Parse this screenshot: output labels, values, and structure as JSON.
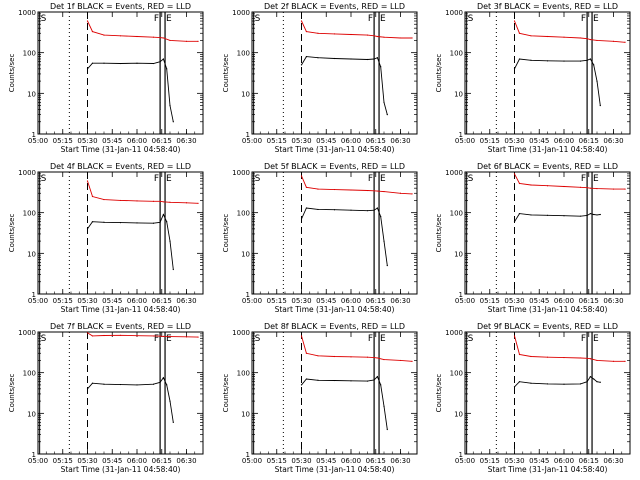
{
  "colors": {
    "events": "#000000",
    "lld": "#dd0000",
    "axis": "#000000",
    "background": "#ffffff"
  },
  "chart_data": [
    {
      "type": "line",
      "title": "Det 1f BLACK = Events, RED = LLD",
      "xlabel": "Start Time (31-Jan-11 04:58:40)",
      "ylabel": "Counts/sec",
      "xticks": [
        "05:00",
        "05:15",
        "05:30",
        "05:45",
        "06:00",
        "06:15",
        "06:30"
      ],
      "yticks": [
        "1",
        "10",
        "100",
        "1000"
      ],
      "yscale": "log",
      "ylim": [
        1,
        1000
      ],
      "markers": [
        "S",
        "F",
        "E"
      ],
      "series": [
        {
          "name": "LLD",
          "color": "red",
          "x": [
            "05:30",
            "05:33",
            "05:40",
            "05:50",
            "06:00",
            "06:10",
            "06:14",
            "06:16",
            "06:20",
            "06:30",
            "06:37"
          ],
          "y": [
            600,
            330,
            270,
            260,
            250,
            240,
            235,
            230,
            200,
            190,
            190
          ]
        },
        {
          "name": "Events",
          "color": "black",
          "x": [
            "05:30",
            "05:33",
            "05:40",
            "05:50",
            "06:00",
            "06:10",
            "06:14",
            "06:16",
            "06:18",
            "06:20",
            "06:22"
          ],
          "y": [
            40,
            55,
            55,
            54,
            55,
            54,
            60,
            70,
            40,
            5,
            2
          ]
        }
      ]
    },
    {
      "type": "line",
      "title": "Det 2f BLACK = Events, RED = LLD",
      "xlabel": "Start Time (31-Jan-11 04:58:40)",
      "ylabel": "Counts/sec",
      "xticks": [
        "05:00",
        "05:15",
        "05:30",
        "05:45",
        "06:00",
        "06:15",
        "06:30"
      ],
      "yticks": [
        "1",
        "10",
        "100",
        "1000"
      ],
      "yscale": "log",
      "ylim": [
        1,
        1000
      ],
      "markers": [
        "S",
        "F",
        "E"
      ],
      "series": [
        {
          "name": "LLD",
          "color": "red",
          "x": [
            "05:30",
            "05:33",
            "05:40",
            "05:50",
            "06:00",
            "06:10",
            "06:14",
            "06:16",
            "06:20",
            "06:30",
            "06:37"
          ],
          "y": [
            600,
            330,
            300,
            290,
            280,
            270,
            260,
            250,
            240,
            230,
            230
          ]
        },
        {
          "name": "Events",
          "color": "black",
          "x": [
            "05:30",
            "05:33",
            "05:40",
            "05:50",
            "06:00",
            "06:10",
            "06:14",
            "06:16",
            "06:18",
            "06:20",
            "06:22"
          ],
          "y": [
            50,
            80,
            75,
            72,
            70,
            68,
            70,
            75,
            45,
            6,
            3
          ]
        }
      ]
    },
    {
      "type": "line",
      "title": "Det 3f BLACK = Events, RED = LLD",
      "xlabel": "Start Time (31-Jan-11 04:58:40)",
      "ylabel": "Counts/sec",
      "xticks": [
        "05:00",
        "05:15",
        "05:30",
        "05:45",
        "06:00",
        "06:15",
        "06:30"
      ],
      "yticks": [
        "1",
        "10",
        "100",
        "1000"
      ],
      "yscale": "log",
      "ylim": [
        1,
        1000
      ],
      "markers": [
        "S",
        "F",
        "E"
      ],
      "series": [
        {
          "name": "LLD",
          "color": "red",
          "x": [
            "05:30",
            "05:33",
            "05:40",
            "05:50",
            "06:00",
            "06:10",
            "06:14",
            "06:16",
            "06:20",
            "06:30",
            "06:37"
          ],
          "y": [
            600,
            300,
            260,
            250,
            240,
            230,
            220,
            210,
            200,
            190,
            180
          ]
        },
        {
          "name": "Events",
          "color": "black",
          "x": [
            "05:30",
            "05:33",
            "05:40",
            "05:50",
            "06:00",
            "06:10",
            "06:14",
            "06:16",
            "06:18",
            "06:20",
            "06:22"
          ],
          "y": [
            40,
            70,
            65,
            63,
            62,
            62,
            65,
            70,
            50,
            20,
            5
          ]
        }
      ]
    },
    {
      "type": "line",
      "title": "Det 4f BLACK = Events, RED = LLD",
      "xlabel": "Start Time (31-Jan-11 04:58:40)",
      "ylabel": "Counts/sec",
      "xticks": [
        "05:00",
        "05:15",
        "05:30",
        "05:45",
        "06:00",
        "06:15",
        "06:30"
      ],
      "yticks": [
        "1",
        "10",
        "100",
        "1000"
      ],
      "yscale": "log",
      "ylim": [
        1,
        1000
      ],
      "markers": [
        "S",
        "F",
        "E"
      ],
      "series": [
        {
          "name": "LLD",
          "color": "red",
          "x": [
            "05:30",
            "05:33",
            "05:40",
            "05:50",
            "06:00",
            "06:10",
            "06:14",
            "06:16",
            "06:20",
            "06:30",
            "06:37"
          ],
          "y": [
            600,
            250,
            210,
            200,
            195,
            190,
            190,
            185,
            180,
            175,
            170
          ]
        },
        {
          "name": "Events",
          "color": "black",
          "x": [
            "05:30",
            "05:33",
            "05:40",
            "05:50",
            "06:00",
            "06:10",
            "06:14",
            "06:16",
            "06:18",
            "06:20",
            "06:22"
          ],
          "y": [
            40,
            60,
            58,
            57,
            56,
            55,
            58,
            90,
            60,
            20,
            4
          ]
        }
      ]
    },
    {
      "type": "line",
      "title": "Det 5f BLACK = Events, RED = LLD",
      "xlabel": "Start Time (31-Jan-11 04:58:40)",
      "ylabel": "Counts/sec",
      "xticks": [
        "05:00",
        "05:15",
        "05:30",
        "05:45",
        "06:00",
        "06:15",
        "06:30"
      ],
      "yticks": [
        "1",
        "10",
        "100",
        "1000"
      ],
      "yscale": "log",
      "ylim": [
        1,
        1000
      ],
      "markers": [
        "S",
        "F",
        "E"
      ],
      "series": [
        {
          "name": "LLD",
          "color": "red",
          "x": [
            "05:30",
            "05:33",
            "05:40",
            "05:50",
            "06:00",
            "06:10",
            "06:14",
            "06:16",
            "06:20",
            "06:30",
            "06:37"
          ],
          "y": [
            800,
            420,
            380,
            370,
            360,
            350,
            345,
            340,
            330,
            300,
            290
          ]
        },
        {
          "name": "Events",
          "color": "black",
          "x": [
            "05:30",
            "05:33",
            "05:40",
            "05:50",
            "06:00",
            "06:10",
            "06:14",
            "06:16",
            "06:18",
            "06:20",
            "06:22"
          ],
          "y": [
            70,
            130,
            120,
            118,
            115,
            112,
            115,
            130,
            80,
            20,
            5
          ]
        }
      ]
    },
    {
      "type": "line",
      "title": "Det 6f BLACK = Events, RED = LLD",
      "xlabel": "Start Time (31-Jan-11 04:58:40)",
      "ylabel": "Counts/sec",
      "xticks": [
        "05:00",
        "05:15",
        "05:30",
        "05:45",
        "06:00",
        "06:15",
        "06:30"
      ],
      "yticks": [
        "1",
        "10",
        "100",
        "1000"
      ],
      "yscale": "log",
      "ylim": [
        1,
        1000
      ],
      "markers": [
        "S",
        "F",
        "E"
      ],
      "series": [
        {
          "name": "LLD",
          "color": "red",
          "x": [
            "05:30",
            "05:33",
            "05:40",
            "05:50",
            "06:00",
            "06:10",
            "06:14",
            "06:16",
            "06:20",
            "06:30",
            "06:37"
          ],
          "y": [
            900,
            520,
            480,
            460,
            440,
            420,
            410,
            400,
            390,
            380,
            380
          ]
        },
        {
          "name": "Events",
          "color": "black",
          "x": [
            "05:30",
            "05:33",
            "05:40",
            "05:50",
            "06:00",
            "06:10",
            "06:14",
            "06:16",
            "06:18",
            "06:20",
            "06:22"
          ],
          "y": [
            60,
            95,
            88,
            86,
            84,
            82,
            85,
            95,
            90,
            88,
            90
          ]
        }
      ]
    },
    {
      "type": "line",
      "title": "Det 7f BLACK = Events, RED = LLD",
      "xlabel": "Start Time (31-Jan-11 04:58:40)",
      "ylabel": "Counts/sec",
      "xticks": [
        "05:00",
        "05:15",
        "05:30",
        "05:45",
        "06:00",
        "06:15",
        "06:30"
      ],
      "yticks": [
        "1",
        "10",
        "100",
        "1000"
      ],
      "yscale": "log",
      "ylim": [
        1,
        1000
      ],
      "markers": [
        "S",
        "F",
        "E"
      ],
      "series": [
        {
          "name": "LLD",
          "color": "red",
          "x": [
            "05:30",
            "05:33",
            "05:40",
            "05:50",
            "06:00",
            "06:10",
            "06:14",
            "06:16",
            "06:20",
            "06:30",
            "06:37"
          ],
          "y": [
            950,
            800,
            820,
            830,
            810,
            800,
            790,
            780,
            770,
            760,
            750
          ]
        },
        {
          "name": "Events",
          "color": "black",
          "x": [
            "05:30",
            "05:33",
            "05:40",
            "05:50",
            "06:00",
            "06:10",
            "06:14",
            "06:16",
            "06:18",
            "06:20",
            "06:22"
          ],
          "y": [
            40,
            55,
            52,
            51,
            50,
            52,
            58,
            75,
            50,
            20,
            6
          ]
        }
      ]
    },
    {
      "type": "line",
      "title": "Det 8f BLACK = Events, RED = LLD",
      "xlabel": "Start Time (31-Jan-11 04:58:40)",
      "ylabel": "Counts/sec",
      "xticks": [
        "05:00",
        "05:15",
        "05:30",
        "05:45",
        "06:00",
        "06:15",
        "06:30"
      ],
      "yticks": [
        "1",
        "10",
        "100",
        "1000"
      ],
      "yscale": "log",
      "ylim": [
        1,
        1000
      ],
      "markers": [
        "S",
        "F",
        "E"
      ],
      "series": [
        {
          "name": "LLD",
          "color": "red",
          "x": [
            "05:30",
            "05:33",
            "05:40",
            "05:50",
            "06:00",
            "06:10",
            "06:14",
            "06:16",
            "06:20",
            "06:30",
            "06:37"
          ],
          "y": [
            800,
            300,
            260,
            250,
            245,
            240,
            235,
            230,
            210,
            200,
            190
          ]
        },
        {
          "name": "Events",
          "color": "black",
          "x": [
            "05:30",
            "05:33",
            "05:40",
            "05:50",
            "06:00",
            "06:10",
            "06:14",
            "06:16",
            "06:18",
            "06:20",
            "06:22"
          ],
          "y": [
            50,
            70,
            65,
            64,
            63,
            62,
            66,
            80,
            50,
            15,
            4
          ]
        }
      ]
    },
    {
      "type": "line",
      "title": "Det 9f BLACK = Events, RED = LLD",
      "xlabel": "Start Time (31-Jan-11 04:58:40)",
      "ylabel": "Counts/sec",
      "xticks": [
        "05:00",
        "05:15",
        "05:30",
        "05:45",
        "06:00",
        "06:15",
        "06:30"
      ],
      "yticks": [
        "1",
        "10",
        "100",
        "1000"
      ],
      "yscale": "log",
      "ylim": [
        1,
        1000
      ],
      "markers": [
        "S",
        "F",
        "E"
      ],
      "series": [
        {
          "name": "LLD",
          "color": "red",
          "x": [
            "05:30",
            "05:33",
            "05:40",
            "05:50",
            "06:00",
            "06:10",
            "06:14",
            "06:16",
            "06:20",
            "06:30",
            "06:37"
          ],
          "y": [
            800,
            280,
            250,
            240,
            235,
            230,
            225,
            220,
            200,
            190,
            190
          ]
        },
        {
          "name": "Events",
          "color": "black",
          "x": [
            "05:30",
            "05:33",
            "05:40",
            "05:50",
            "06:00",
            "06:10",
            "06:14",
            "06:16",
            "06:18",
            "06:20",
            "06:22"
          ],
          "y": [
            45,
            60,
            55,
            53,
            52,
            53,
            60,
            80,
            70,
            60,
            58
          ]
        }
      ]
    }
  ]
}
